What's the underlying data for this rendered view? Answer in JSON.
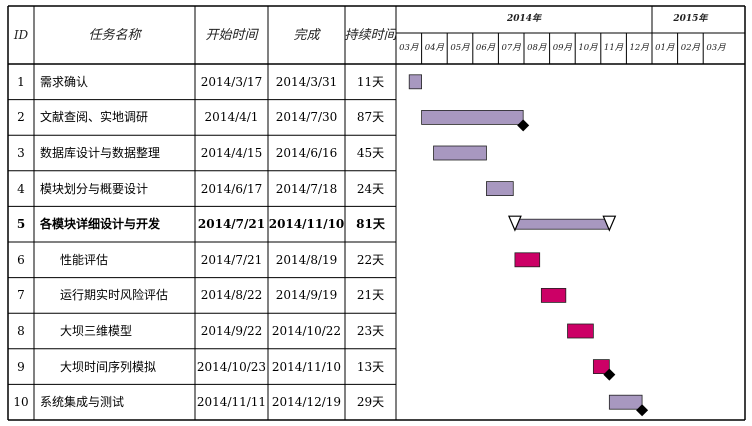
{
  "columns": {
    "id": "ID",
    "name": "任务名称",
    "start": "开始时间",
    "end": "完成",
    "duration": "持续时间"
  },
  "timeline": {
    "years": [
      {
        "label": "2014年",
        "months": 10
      },
      {
        "label": "2015年",
        "months": 3
      }
    ],
    "months": [
      "03月",
      "04月",
      "05月",
      "06月",
      "07月",
      "08月",
      "09月",
      "10月",
      "11月",
      "12月",
      "01月",
      "02月",
      "03月"
    ],
    "start_date": "2014-03-01"
  },
  "colors": {
    "bar_normal": "#a898c0",
    "bar_critical": "#cc0066",
    "milestone": "#000000",
    "grid": "#000000"
  },
  "tasks": [
    {
      "id": "1",
      "name": "需求确认",
      "start": "2014/3/17",
      "end": "2014/3/31",
      "duration": "11天",
      "level": 0,
      "type": "normal",
      "bold": false
    },
    {
      "id": "2",
      "name": "文献查阅、实地调研",
      "start": "2014/4/1",
      "end": "2014/7/30",
      "duration": "87天",
      "level": 0,
      "type": "normal",
      "bold": false,
      "end_marker": "diamond"
    },
    {
      "id": "3",
      "name": "数据库设计与数据整理",
      "start": "2014/4/15",
      "end": "2014/6/16",
      "duration": "45天",
      "level": 0,
      "type": "normal",
      "bold": false
    },
    {
      "id": "4",
      "name": "模块划分与概要设计",
      "start": "2014/6/17",
      "end": "2014/7/18",
      "duration": "24天",
      "level": 0,
      "type": "normal",
      "bold": false
    },
    {
      "id": "5",
      "name": "各模块详细设计与开发",
      "start": "2014/7/21",
      "end": "2014/11/10",
      "duration": "81天",
      "level": 0,
      "type": "summary",
      "bold": true
    },
    {
      "id": "6",
      "name": "性能评估",
      "start": "2014/7/21",
      "end": "2014/8/19",
      "duration": "22天",
      "level": 1,
      "type": "critical",
      "bold": false
    },
    {
      "id": "7",
      "name": "运行期实时风险评估",
      "start": "2014/8/22",
      "end": "2014/9/19",
      "duration": "21天",
      "level": 1,
      "type": "critical",
      "bold": false
    },
    {
      "id": "8",
      "name": "大坝三维模型",
      "start": "2014/9/22",
      "end": "2014/10/22",
      "duration": "23天",
      "level": 1,
      "type": "critical",
      "bold": false
    },
    {
      "id": "9",
      "name": "大坝时间序列模拟",
      "start": "2014/10/23",
      "end": "2014/11/10",
      "duration": "13天",
      "level": 1,
      "type": "critical",
      "bold": false,
      "end_marker": "diamond"
    },
    {
      "id": "10",
      "name": "系统集成与测试",
      "start": "2014/11/11",
      "end": "2014/12/19",
      "duration": "29天",
      "level": 0,
      "type": "normal",
      "bold": false,
      "end_marker": "diamond"
    }
  ]
}
